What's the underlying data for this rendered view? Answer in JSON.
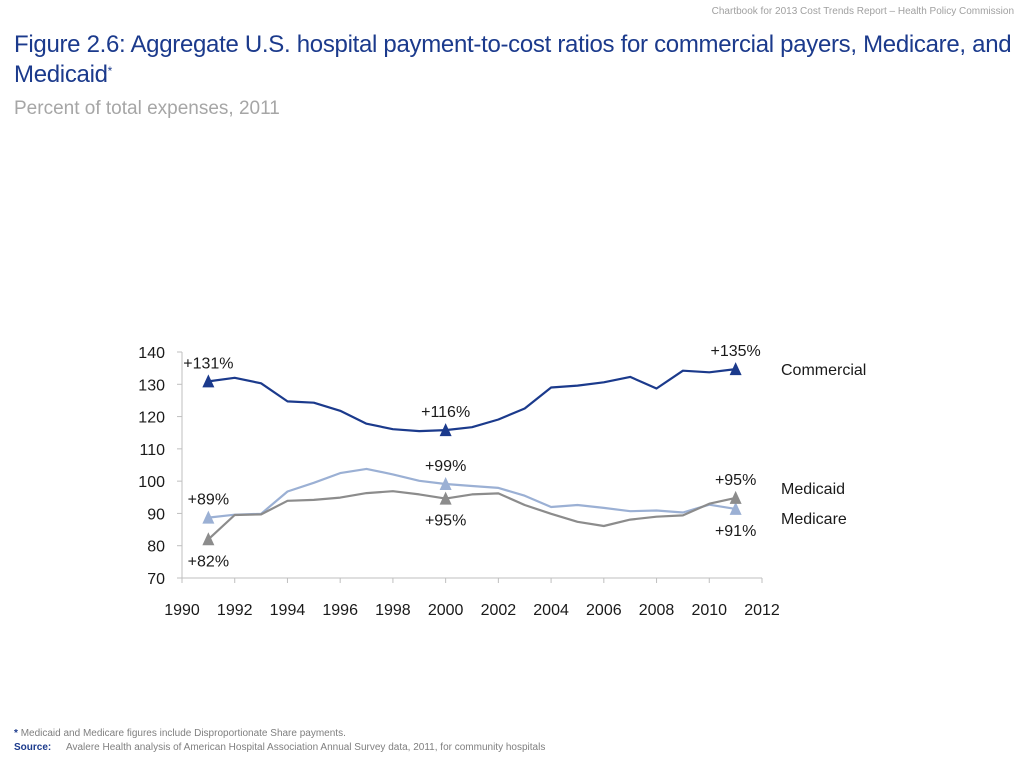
{
  "header_note": "Chartbook for 2013 Cost Trends Report – Health Policy Commission",
  "title": "Figure 2.6: Aggregate U.S. hospital payment-to-cost ratios for commercial payers, Medicare, and Medicaid",
  "title_marker": "*",
  "subtitle": "Percent of total expenses, 2011",
  "footnote": {
    "marker": "*",
    "text": "Medicaid and Medicare figures include Disproportionate Share payments.",
    "source_label": "Source:",
    "source_text": "Avalere Health analysis of American Hospital Association Annual Survey data, 2011, for community hospitals"
  },
  "chart_data": {
    "type": "line",
    "x": [
      1991,
      1992,
      1993,
      1994,
      1995,
      1996,
      1997,
      1998,
      1999,
      2000,
      2001,
      2002,
      2003,
      2004,
      2005,
      2006,
      2007,
      2008,
      2009,
      2010,
      2011
    ],
    "xlim": [
      1990,
      2012
    ],
    "xticks": [
      "1990",
      "1992",
      "1994",
      "1996",
      "1998",
      "2000",
      "2002",
      "2004",
      "2006",
      "2008",
      "2010",
      "2012"
    ],
    "ylim": [
      70,
      140
    ],
    "yticks": [
      "70",
      "80",
      "90",
      "100",
      "110",
      "120",
      "130",
      "140"
    ],
    "grid": false,
    "legend": "labels at right end of lines",
    "series": [
      {
        "name": "Commercial",
        "color": "#1b3a8c",
        "values": [
          130.9,
          132.0,
          130.3,
          124.7,
          124.3,
          121.8,
          117.8,
          116.1,
          115.5,
          115.8,
          116.7,
          119.1,
          122.5,
          129.0,
          129.6,
          130.6,
          132.3,
          128.7,
          134.2,
          133.7,
          134.7
        ]
      },
      {
        "name": "Medicaid",
        "color": "#9bb0d4",
        "values": [
          88.7,
          89.6,
          89.9,
          96.8,
          99.5,
          102.5,
          103.8,
          102.1,
          100.1,
          99.1,
          98.5,
          97.9,
          95.5,
          92.0,
          92.6,
          91.7,
          90.7,
          90.9,
          90.3,
          92.7,
          91.4
        ]
      },
      {
        "name": "Medicare",
        "color": "#8c8c8c",
        "values": [
          82.0,
          89.5,
          89.7,
          93.9,
          94.2,
          94.9,
          96.3,
          96.9,
          95.9,
          94.6,
          95.9,
          96.2,
          92.6,
          89.9,
          87.4,
          86.1,
          88.1,
          89.0,
          89.4,
          93.0,
          94.8
        ]
      }
    ],
    "annotations": [
      {
        "series": "Commercial",
        "x": 1991,
        "label": "+131%",
        "pos": "above"
      },
      {
        "series": "Commercial",
        "x": 2000,
        "label": "+116%",
        "pos": "above"
      },
      {
        "series": "Commercial",
        "x": 2011,
        "label": "+135%",
        "pos": "above"
      },
      {
        "series": "Medicaid",
        "x": 1991,
        "label": "+89%",
        "pos": "above"
      },
      {
        "series": "Medicaid",
        "x": 2000,
        "label": "+99%",
        "pos": "above"
      },
      {
        "series": "Medicaid",
        "x": 2011,
        "label": "+91%",
        "pos": "below"
      },
      {
        "series": "Medicare",
        "x": 1991,
        "label": "+82%",
        "pos": "below"
      },
      {
        "series": "Medicare",
        "x": 2000,
        "label": "+95%",
        "pos": "below"
      },
      {
        "series": "Medicare",
        "x": 2011,
        "label": "+95%",
        "pos": "above"
      }
    ]
  }
}
